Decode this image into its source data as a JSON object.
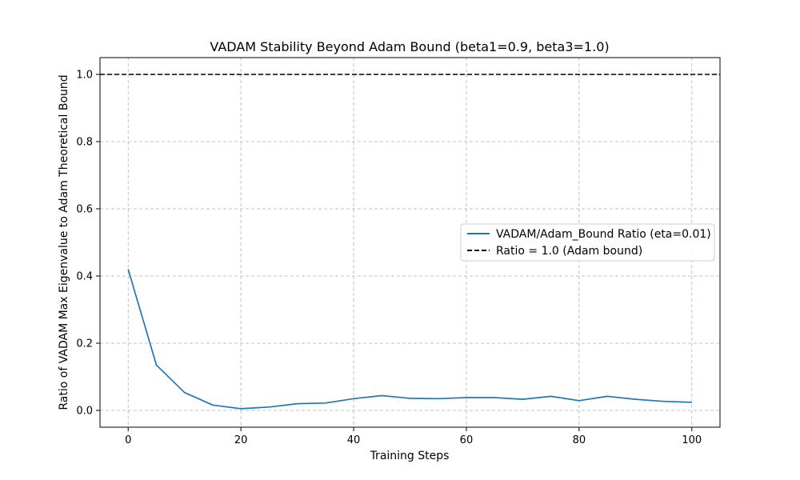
{
  "chart_data": {
    "type": "line",
    "title": "VADAM Stability Beyond Adam Bound (beta1=0.9, beta3=1.0)",
    "xlabel": "Training Steps",
    "ylabel": "Ratio of VADAM Max Eigenvalue to Adam Theoretical Bound",
    "xlim": [
      -5,
      105
    ],
    "ylim": [
      -0.05,
      1.05
    ],
    "xticks": [
      0,
      20,
      40,
      60,
      80,
      100
    ],
    "yticks": [
      0.0,
      0.2,
      0.4,
      0.6,
      0.8,
      1.0
    ],
    "xtick_labels": [
      "0",
      "20",
      "40",
      "60",
      "80",
      "100"
    ],
    "ytick_labels": [
      "0.0",
      "0.2",
      "0.4",
      "0.6",
      "0.8",
      "1.0"
    ],
    "grid": true,
    "legend_position": "center-right",
    "series": [
      {
        "name": "VADAM/Adam_Bound Ratio (eta=0.01)",
        "color": "#1f77b4",
        "style": "solid",
        "x": [
          0,
          5,
          10,
          15,
          20,
          25,
          30,
          35,
          40,
          45,
          50,
          55,
          60,
          65,
          70,
          75,
          80,
          85,
          90,
          95,
          100
        ],
        "values": [
          0.42,
          0.135,
          0.053,
          0.016,
          0.005,
          0.01,
          0.02,
          0.022,
          0.035,
          0.044,
          0.036,
          0.035,
          0.038,
          0.038,
          0.033,
          0.042,
          0.029,
          0.042,
          0.033,
          0.027,
          0.024
        ]
      }
    ],
    "reference_lines": [
      {
        "name": "Ratio = 1.0 (Adam bound)",
        "y": 1.0,
        "color": "#000000",
        "style": "dashed"
      }
    ]
  }
}
